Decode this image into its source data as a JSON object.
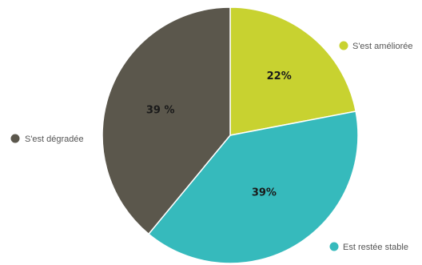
{
  "chart_data": {
    "type": "pie",
    "categories": [
      "S'est améliorée",
      "Est restée stable",
      "S'est dégradée"
    ],
    "values": [
      22,
      39,
      39
    ],
    "data_labels": [
      "22%",
      "39%",
      "39 %"
    ],
    "colors": [
      "#c8d230",
      "#36babc",
      "#5b574c"
    ],
    "start": "12 o'clock",
    "direction": "clockwise",
    "legend": "labels placed beside each slice"
  }
}
